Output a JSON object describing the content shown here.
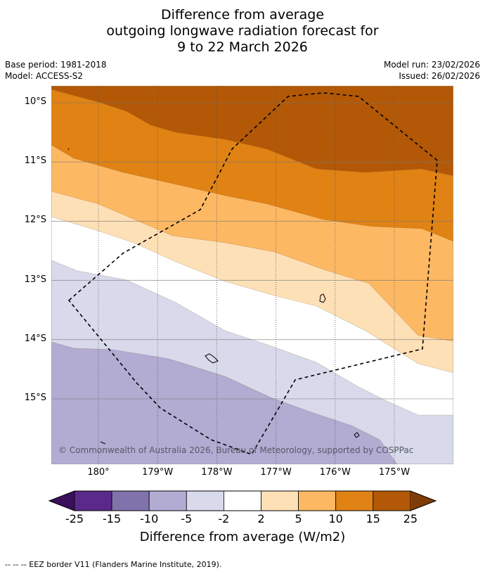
{
  "title": {
    "line1": "Difference from average",
    "line2": "outgoing longwave radiation forecast for",
    "line3": "9 to 22 March 2026"
  },
  "meta": {
    "base_period": "Base period: 1981-2018",
    "model": "Model: ACCESS-S2",
    "model_run": "Model run: 23/02/2026",
    "issued": "Issued: 26/02/2026"
  },
  "map": {
    "lat_ticks": [
      {
        "label": "10°S",
        "value": -10
      },
      {
        "label": "11°S",
        "value": -11
      },
      {
        "label": "12°S",
        "value": -12
      },
      {
        "label": "13°S",
        "value": -13
      },
      {
        "label": "14°S",
        "value": -14
      },
      {
        "label": "15°S",
        "value": -15
      }
    ],
    "lon_ticks": [
      {
        "label": "180°",
        "value": 180
      },
      {
        "label": "179°W",
        "value": 181
      },
      {
        "label": "178°W",
        "value": 182
      },
      {
        "label": "177°W",
        "value": 183
      },
      {
        "label": "176°W",
        "value": 184
      },
      {
        "label": "175°W",
        "value": 185
      }
    ],
    "copyright": "© Commonwealth of Australia 2026, Bureau of Meteorology, supported by COSPPac"
  },
  "colorbar": {
    "labels": [
      "-25",
      "-15",
      "-10",
      "-5",
      "-2",
      "2",
      "5",
      "10",
      "15",
      "25"
    ],
    "colors": [
      "#3b0f5c",
      "#5a2a8a",
      "#8073ac",
      "#b2abd2",
      "#d8daeb",
      "#ffffff",
      "#fee0b6",
      "#fdb863",
      "#e08214",
      "#b35806",
      "#7f3b08"
    ],
    "title": "Difference from average (W/m2)"
  },
  "colors": {
    "c_pos_3": "#b35806",
    "c_pos_2": "#e08214",
    "c_pos_1": "#fdb863",
    "c_pos_0": "#fee0b6",
    "c_neu": "#ffffff",
    "c_neg_0": "#d8daeb",
    "c_neg_1": "#b2abd2"
  },
  "footnote": "--  --  -- EEZ border V11 (Flanders Marine Institute, 2019)."
}
